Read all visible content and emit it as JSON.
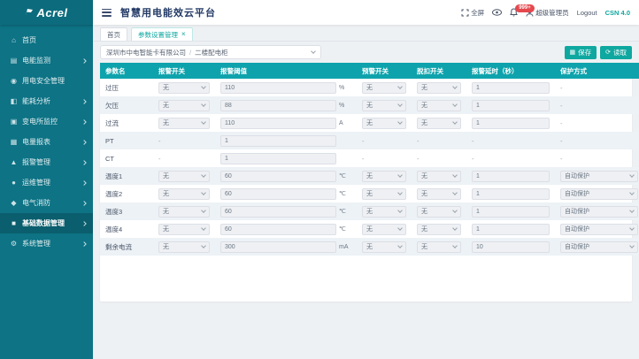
{
  "app": {
    "logo_text": "Acrel",
    "title": "智慧用电能效云平台"
  },
  "colors": {
    "accent": "#0fa8a0",
    "sidebar": "#0d7385",
    "table_header": "#0ea3ac",
    "badge": "#e5484d"
  },
  "header": {
    "fullscreen_label": "全屏",
    "notification_badge": "999+",
    "username": "超级管理员",
    "logout_label": "Logout",
    "version_label": "CSN 4.0"
  },
  "sidebar": {
    "items": [
      {
        "label": "首页",
        "icon": "home-icon",
        "glyph": "⌂",
        "arrow": false,
        "active": false
      },
      {
        "label": "电能监测",
        "icon": "monitor-icon",
        "glyph": "▤",
        "arrow": true,
        "active": false
      },
      {
        "label": "用电安全管理",
        "icon": "safety-icon",
        "glyph": "◉",
        "arrow": false,
        "active": false
      },
      {
        "label": "能耗分析",
        "icon": "energy-icon",
        "glyph": "◧",
        "arrow": true,
        "active": false
      },
      {
        "label": "变电所监控",
        "icon": "substation-icon",
        "glyph": "▣",
        "arrow": true,
        "active": false
      },
      {
        "label": "电量报表",
        "icon": "report-icon",
        "glyph": "▦",
        "arrow": true,
        "active": false
      },
      {
        "label": "报警管理",
        "icon": "alarm-icon",
        "glyph": "▲",
        "arrow": true,
        "active": false
      },
      {
        "label": "运维管理",
        "icon": "ops-icon",
        "glyph": "●",
        "arrow": true,
        "active": false
      },
      {
        "label": "电气消防",
        "icon": "fire-icon",
        "glyph": "◆",
        "arrow": true,
        "active": false
      },
      {
        "label": "基础数据管理",
        "icon": "database-icon",
        "glyph": "■",
        "arrow": true,
        "active": true
      },
      {
        "label": "系统管理",
        "icon": "system-icon",
        "glyph": "⚙",
        "arrow": true,
        "active": false
      }
    ]
  },
  "tabs": [
    {
      "label": "首页",
      "active": false,
      "closable": false
    },
    {
      "label": "参数设置管理",
      "active": true,
      "closable": true
    }
  ],
  "toolbar": {
    "company": "深圳市中电智能卡有限公司",
    "station": "二楼配电柜",
    "buttons": [
      {
        "label": "保存",
        "icon": "save-icon",
        "glyph": "▦"
      },
      {
        "label": "读取",
        "icon": "read-icon",
        "glyph": "⟳"
      }
    ]
  },
  "table": {
    "headers": [
      "参数名",
      "报警开关",
      "报警阈值",
      "预警开关",
      "脱扣开关",
      "报警延时（秒）",
      "保护方式"
    ],
    "rows": [
      {
        "name": "过压",
        "alarm": "无",
        "value": "110",
        "unit": "%",
        "warn": "无",
        "trip": "无",
        "delay": "1",
        "protect": null
      },
      {
        "name": "欠压",
        "alarm": "无",
        "value": "88",
        "unit": "%",
        "warn": "无",
        "trip": "无",
        "delay": "1",
        "protect": null
      },
      {
        "name": "过流",
        "alarm": "无",
        "value": "110",
        "unit": "A",
        "warn": "无",
        "trip": "无",
        "delay": "1",
        "protect": null
      },
      {
        "name": "PT",
        "alarm": null,
        "value": "1",
        "unit": "",
        "warn": null,
        "trip": null,
        "delay": null,
        "protect": null
      },
      {
        "name": "CT",
        "alarm": null,
        "value": "1",
        "unit": "",
        "warn": null,
        "trip": null,
        "delay": null,
        "protect": null
      },
      {
        "name": "温度1",
        "alarm": "无",
        "value": "60",
        "unit": "℃",
        "warn": "无",
        "trip": "无",
        "delay": "1",
        "protect": "自动保护"
      },
      {
        "name": "温度2",
        "alarm": "无",
        "value": "60",
        "unit": "℃",
        "warn": "无",
        "trip": "无",
        "delay": "1",
        "protect": "自动保护"
      },
      {
        "name": "温度3",
        "alarm": "无",
        "value": "60",
        "unit": "℃",
        "warn": "无",
        "trip": "无",
        "delay": "1",
        "protect": "自动保护"
      },
      {
        "name": "温度4",
        "alarm": "无",
        "value": "60",
        "unit": "℃",
        "warn": "无",
        "trip": "无",
        "delay": "1",
        "protect": "自动保护"
      },
      {
        "name": "剩余电流",
        "alarm": "无",
        "value": "300",
        "unit": "mA",
        "warn": "无",
        "trip": "无",
        "delay": "10",
        "protect": "自动保护"
      }
    ]
  }
}
